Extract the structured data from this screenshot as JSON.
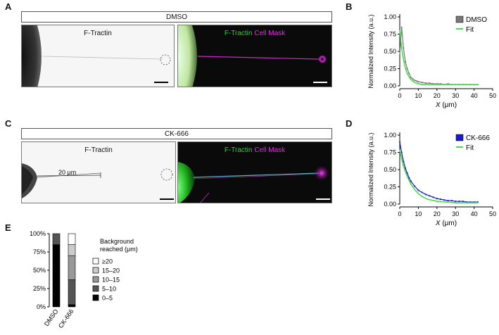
{
  "panels": {
    "A": "A",
    "B": "B",
    "C": "C",
    "D": "D",
    "E": "E"
  },
  "row_a": {
    "condition": "DMSO",
    "left_label": "F-Tractin",
    "right_label_green": "F-Tractin",
    "right_label_magenta": "Cell Mask"
  },
  "row_c": {
    "condition": "CK-666",
    "left_label": "F-Tractin",
    "right_label_green": "F-Tractin",
    "right_label_magenta": "Cell Mask",
    "measure_label": "20 μm"
  },
  "colors": {
    "green_label": "#22dd22",
    "magenta_label": "#ee22ee",
    "dmso_series": "#777777",
    "ck666_series": "#1a1ad0",
    "fit": "#44e044"
  },
  "chart_data": [
    {
      "panel": "B",
      "type": "line",
      "xlabel_var": "X",
      "xlabel_unit": " (μm)",
      "ylabel": "Normalized Intensity (a.u.)",
      "xlim": [
        0,
        50
      ],
      "ylim": [
        0,
        1.0
      ],
      "xticks": [
        "0",
        "10",
        "20",
        "30",
        "40",
        "50"
      ],
      "yticks": [
        "0.00",
        "0.25",
        "0.50",
        "0.75",
        "1.00"
      ],
      "legend": [
        "DMSO",
        "Fit"
      ],
      "series": [
        {
          "name": "DMSO",
          "x": [
            0,
            1,
            2,
            3,
            4,
            5,
            6,
            7,
            8,
            9,
            10,
            12,
            14,
            16,
            18,
            20,
            22,
            24,
            26,
            28,
            30,
            32,
            34,
            36,
            38,
            40,
            42
          ],
          "y": [
            0.45,
            0.85,
            0.55,
            0.35,
            0.25,
            0.18,
            0.12,
            0.1,
            0.08,
            0.07,
            0.06,
            0.05,
            0.04,
            0.04,
            0.03,
            0.03,
            0.03,
            0.02,
            0.03,
            0.02,
            0.02,
            0.02,
            0.02,
            0.02,
            0.02,
            0.02,
            0.02
          ]
        },
        {
          "name": "Fit",
          "x": [
            0,
            1,
            2,
            3,
            4,
            5,
            6,
            7,
            8,
            10,
            12,
            15,
            20,
            25,
            30,
            35,
            42
          ],
          "y": [
            0.8,
            0.55,
            0.38,
            0.26,
            0.18,
            0.13,
            0.09,
            0.07,
            0.05,
            0.03,
            0.02,
            0.02,
            0.02,
            0.02,
            0.02,
            0.02,
            0.02
          ]
        }
      ]
    },
    {
      "panel": "D",
      "type": "line",
      "xlabel_var": "X",
      "xlabel_unit": " (μm)",
      "ylabel": "Normalized Intensity (a.u.)",
      "xlim": [
        0,
        50
      ],
      "ylim": [
        0,
        1.0
      ],
      "xticks": [
        "0",
        "10",
        "20",
        "30",
        "40",
        "50"
      ],
      "yticks": [
        "0.00",
        "0.25",
        "0.50",
        "0.75",
        "1.00"
      ],
      "legend": [
        "CK-666",
        "Fit"
      ],
      "series": [
        {
          "name": "CK-666",
          "x": [
            0,
            1,
            2,
            3,
            4,
            5,
            6,
            8,
            10,
            12,
            14,
            16,
            18,
            20,
            22,
            24,
            26,
            28,
            30,
            32,
            34,
            36,
            38,
            40,
            42
          ],
          "y": [
            0.9,
            0.75,
            0.62,
            0.52,
            0.45,
            0.38,
            0.33,
            0.26,
            0.2,
            0.17,
            0.14,
            0.12,
            0.1,
            0.08,
            0.07,
            0.06,
            0.05,
            0.05,
            0.04,
            0.04,
            0.04,
            0.03,
            0.03,
            0.03,
            0.03
          ]
        },
        {
          "name": "Fit",
          "x": [
            0,
            2,
            4,
            6,
            8,
            10,
            12,
            15,
            20,
            25,
            30,
            35,
            42
          ],
          "y": [
            0.78,
            0.55,
            0.4,
            0.29,
            0.21,
            0.15,
            0.11,
            0.07,
            0.04,
            0.03,
            0.02,
            0.02,
            0.02
          ]
        }
      ]
    },
    {
      "panel": "E",
      "type": "bar",
      "stacked": true,
      "categories": [
        "DMSO",
        "CK-666"
      ],
      "yticks": [
        "0%",
        "25%",
        "50%",
        "75%",
        "100%"
      ],
      "ylim": [
        0,
        100
      ],
      "legend_title_1": "Background",
      "legend_title_2": "reached (μm)",
      "series": [
        {
          "name": "0–5",
          "color": "#000000",
          "values": [
            85,
            3
          ]
        },
        {
          "name": "5–10",
          "color": "#555555",
          "values": [
            15,
            34
          ]
        },
        {
          "name": "10–15",
          "color": "#999999",
          "values": [
            0,
            33
          ]
        },
        {
          "name": "15–20",
          "color": "#cccccc",
          "values": [
            0,
            15
          ]
        },
        {
          "name": "≥20",
          "color": "#ffffff",
          "values": [
            0,
            15
          ]
        }
      ],
      "legend_order": [
        "≥20",
        "15–20",
        "10–15",
        "5–10",
        "0–5"
      ]
    }
  ]
}
